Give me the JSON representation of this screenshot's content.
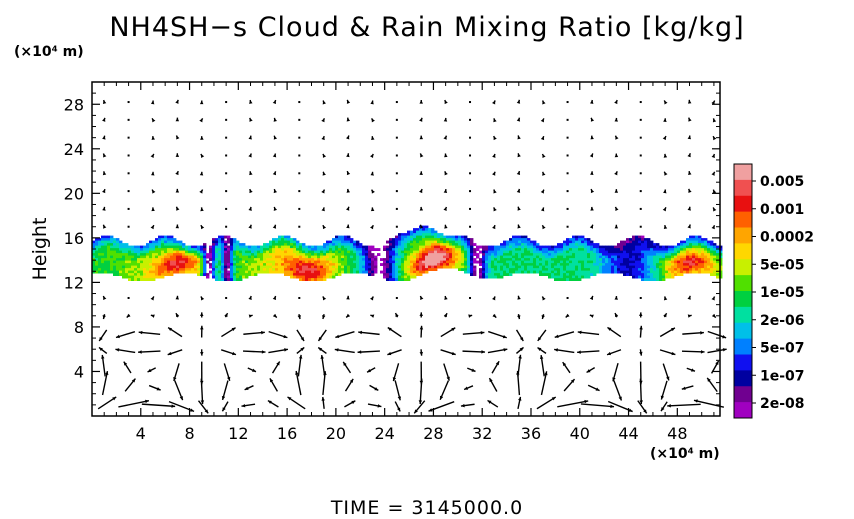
{
  "title": "NH4SH−s Cloud & Rain Mixing Ratio [kg/kg]",
  "time_label": "TIME  =  3145000.0",
  "chart_data": {
    "type": "heatmap",
    "title": "NH4SH−s Cloud & Rain Mixing Ratio [kg/kg]",
    "ylabel": "Height",
    "xunit": "(×10⁴ m)",
    "yunit": "(×10⁴ m)",
    "xlim": [
      0,
      51.5
    ],
    "ylim": [
      0,
      30
    ],
    "x_ticks": [
      4,
      8,
      12,
      16,
      20,
      24,
      28,
      32,
      36,
      40,
      44,
      48
    ],
    "y_ticks": [
      4,
      8,
      12,
      16,
      20,
      24,
      28
    ],
    "colorbar": {
      "labels": [
        "0.005",
        "0.001",
        "0.0002",
        "5e-05",
        "1e-05",
        "2e-06",
        "5e-07",
        "1e-07",
        "2e-08"
      ],
      "colors": [
        "#f0a0a0",
        "#f05050",
        "#e81010",
        "#ff6000",
        "#ffa500",
        "#ffd700",
        "#c8f000",
        "#50e000",
        "#00d040",
        "#00e0a0",
        "#00c0e8",
        "#0080ff",
        "#1010f0",
        "#0000a0",
        "#700090",
        "#a000c0"
      ]
    },
    "cloud_layer": {
      "base_height": 12.5,
      "top_height": 16.0,
      "peak_height": 17.2,
      "peak_x": 27.5,
      "max_value_regions_x": [
        7,
        18,
        28,
        49
      ]
    },
    "wind_field": "vector arrows, strong below height 9, weak above"
  }
}
